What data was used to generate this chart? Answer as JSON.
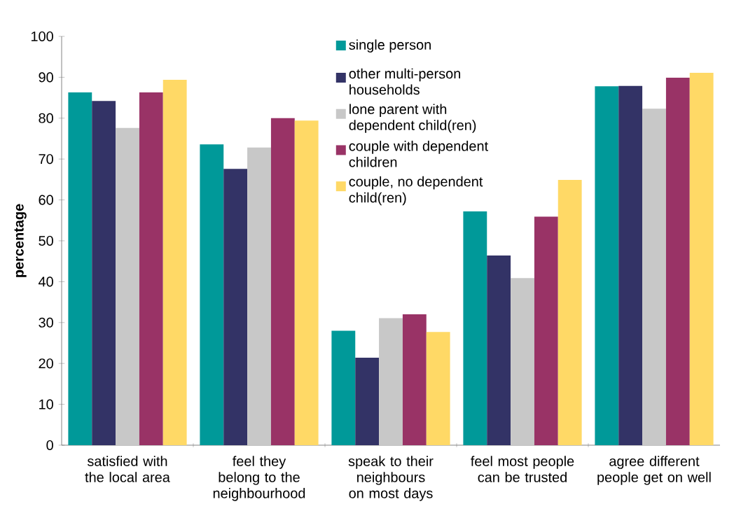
{
  "chart_data": {
    "type": "bar",
    "ylabel": "percentage",
    "categories": [
      "satisfied with the local area",
      "feel they belong to the neighbourhood",
      "speak to their neighbours on most days",
      "feel most people can be trusted",
      "agree different people get on well"
    ],
    "series": [
      {
        "name": "single person",
        "color": "#009999",
        "values": [
          86.3,
          73.6,
          28.0,
          57.2,
          87.8
        ]
      },
      {
        "name": "other multi-person households",
        "color": "#333366",
        "values": [
          84.2,
          67.6,
          21.4,
          46.4,
          87.9
        ]
      },
      {
        "name": "lone parent with dependent child(ren)",
        "color": "#c8c8c8",
        "values": [
          77.6,
          72.8,
          31.1,
          40.9,
          82.3
        ]
      },
      {
        "name": "couple with dependent children",
        "color": "#993366",
        "values": [
          86.3,
          80.0,
          32.0,
          55.9,
          89.9
        ]
      },
      {
        "name": "couple, no dependent child(ren)",
        "color": "#ffd966",
        "values": [
          89.4,
          79.4,
          27.7,
          64.9,
          91.1
        ]
      }
    ],
    "ylim": [
      0,
      100
    ],
    "yticks": [
      0,
      10,
      20,
      30,
      40,
      50,
      60,
      70,
      80,
      90,
      100
    ],
    "grid": false,
    "legend": "top"
  }
}
